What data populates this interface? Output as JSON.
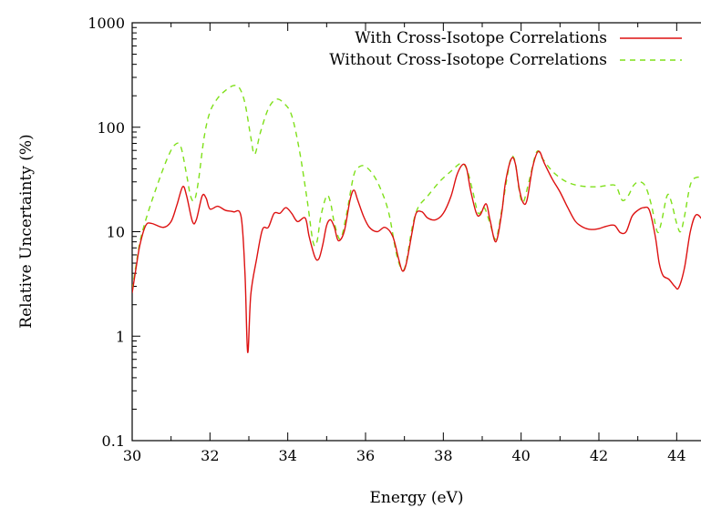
{
  "chart_data": {
    "type": "line",
    "xlabel": "Energy (eV)",
    "ylabel": "Relative Uncertainty (%)",
    "xlim": [
      30,
      45
    ],
    "ylim": [
      0.1,
      1000
    ],
    "yscale": "log",
    "grid": false,
    "legend": "top-right",
    "x_ticks": [
      30,
      32,
      34,
      36,
      38,
      40,
      42,
      44
    ],
    "x_tick_labels": [
      "30",
      "32",
      "34",
      "36",
      "38",
      "40",
      "42",
      "44"
    ],
    "y_ticks": [
      0.1,
      1,
      10,
      100,
      1000
    ],
    "y_tick_labels": [
      "0.1",
      "1",
      "10",
      "100",
      "1000"
    ],
    "series": [
      {
        "name": "With Cross-Isotope Correlations",
        "color": "#dd1111",
        "dash": "solid",
        "points": [
          [
            30.0,
            2.6
          ],
          [
            30.1,
            4.5
          ],
          [
            30.2,
            7.5
          ],
          [
            30.35,
            11.5
          ],
          [
            30.5,
            12.0
          ],
          [
            30.8,
            11.0
          ],
          [
            31.0,
            12.5
          ],
          [
            31.15,
            18
          ],
          [
            31.3,
            27
          ],
          [
            31.4,
            22
          ],
          [
            31.55,
            12.5
          ],
          [
            31.65,
            13
          ],
          [
            31.8,
            22
          ],
          [
            31.9,
            21
          ],
          [
            32.0,
            16.5
          ],
          [
            32.2,
            17.5
          ],
          [
            32.4,
            16
          ],
          [
            32.6,
            15.5
          ],
          [
            32.8,
            14
          ],
          [
            32.9,
            4
          ],
          [
            32.97,
            0.7
          ],
          [
            33.05,
            2.5
          ],
          [
            33.2,
            5.5
          ],
          [
            33.35,
            10.5
          ],
          [
            33.5,
            11
          ],
          [
            33.65,
            15
          ],
          [
            33.8,
            15
          ],
          [
            33.95,
            17
          ],
          [
            34.1,
            15
          ],
          [
            34.25,
            12.5
          ],
          [
            34.45,
            13.5
          ],
          [
            34.55,
            9
          ],
          [
            34.7,
            5.7
          ],
          [
            34.8,
            5.5
          ],
          [
            34.9,
            7.5
          ],
          [
            35.0,
            11.5
          ],
          [
            35.1,
            13
          ],
          [
            35.2,
            11
          ],
          [
            35.3,
            8.2
          ],
          [
            35.45,
            10
          ],
          [
            35.6,
            20
          ],
          [
            35.7,
            25
          ],
          [
            35.8,
            20
          ],
          [
            35.95,
            14
          ],
          [
            36.1,
            11
          ],
          [
            36.3,
            10
          ],
          [
            36.5,
            11
          ],
          [
            36.7,
            9
          ],
          [
            36.85,
            5.5
          ],
          [
            36.95,
            4.2
          ],
          [
            37.05,
            5
          ],
          [
            37.2,
            10
          ],
          [
            37.3,
            15
          ],
          [
            37.45,
            15.5
          ],
          [
            37.6,
            13.5
          ],
          [
            37.8,
            13
          ],
          [
            38.0,
            15
          ],
          [
            38.2,
            22
          ],
          [
            38.35,
            35
          ],
          [
            38.5,
            44
          ],
          [
            38.6,
            40
          ],
          [
            38.7,
            25
          ],
          [
            38.85,
            15
          ],
          [
            38.95,
            14.5
          ],
          [
            39.1,
            18.5
          ],
          [
            39.2,
            13
          ],
          [
            39.35,
            8
          ],
          [
            39.5,
            15
          ],
          [
            39.6,
            30
          ],
          [
            39.75,
            50
          ],
          [
            39.85,
            45
          ],
          [
            39.95,
            26
          ],
          [
            40.05,
            19
          ],
          [
            40.15,
            20
          ],
          [
            40.3,
            42
          ],
          [
            40.45,
            59
          ],
          [
            40.6,
            45
          ],
          [
            40.8,
            32
          ],
          [
            41.0,
            24
          ],
          [
            41.2,
            17
          ],
          [
            41.4,
            12.5
          ],
          [
            41.6,
            11
          ],
          [
            41.8,
            10.5
          ],
          [
            42.0,
            10.7
          ],
          [
            42.2,
            11.3
          ],
          [
            42.4,
            11.5
          ],
          [
            42.55,
            9.8
          ],
          [
            42.7,
            10
          ],
          [
            42.85,
            14
          ],
          [
            43.0,
            16
          ],
          [
            43.15,
            17
          ],
          [
            43.3,
            16
          ],
          [
            43.45,
            9
          ],
          [
            43.55,
            5
          ],
          [
            43.65,
            3.8
          ],
          [
            43.8,
            3.5
          ],
          [
            43.95,
            3.0
          ],
          [
            44.05,
            2.9
          ],
          [
            44.2,
            4.5
          ],
          [
            44.35,
            10
          ],
          [
            44.5,
            14.5
          ],
          [
            44.7,
            12.5
          ],
          [
            44.85,
            11
          ]
        ]
      },
      {
        "name": "Without Cross-Isotope Correlations",
        "color": "#7fe01a",
        "dash": "6,5",
        "points": [
          [
            30.0,
            2.8
          ],
          [
            30.1,
            4.8
          ],
          [
            30.2,
            8
          ],
          [
            30.35,
            13
          ],
          [
            30.6,
            25
          ],
          [
            30.9,
            50
          ],
          [
            31.1,
            68
          ],
          [
            31.25,
            65
          ],
          [
            31.4,
            35
          ],
          [
            31.5,
            22
          ],
          [
            31.6,
            20
          ],
          [
            31.7,
            30
          ],
          [
            31.85,
            80
          ],
          [
            32.0,
            140
          ],
          [
            32.2,
            190
          ],
          [
            32.4,
            225
          ],
          [
            32.6,
            250
          ],
          [
            32.75,
            240
          ],
          [
            32.9,
            170
          ],
          [
            33.05,
            80
          ],
          [
            33.15,
            55
          ],
          [
            33.3,
            90
          ],
          [
            33.5,
            150
          ],
          [
            33.7,
            185
          ],
          [
            33.9,
            170
          ],
          [
            34.1,
            130
          ],
          [
            34.3,
            60
          ],
          [
            34.5,
            20
          ],
          [
            34.65,
            8
          ],
          [
            34.75,
            8
          ],
          [
            34.85,
            14
          ],
          [
            35.0,
            22
          ],
          [
            35.1,
            19
          ],
          [
            35.2,
            12
          ],
          [
            35.35,
            8.5
          ],
          [
            35.5,
            14
          ],
          [
            35.7,
            35
          ],
          [
            35.85,
            42
          ],
          [
            36.0,
            42
          ],
          [
            36.2,
            35
          ],
          [
            36.4,
            25
          ],
          [
            36.6,
            15
          ],
          [
            36.8,
            6
          ],
          [
            36.95,
            4.3
          ],
          [
            37.05,
            5.2
          ],
          [
            37.2,
            11
          ],
          [
            37.35,
            17
          ],
          [
            37.6,
            22
          ],
          [
            37.9,
            30
          ],
          [
            38.2,
            38
          ],
          [
            38.45,
            45
          ],
          [
            38.6,
            40
          ],
          [
            38.75,
            25
          ],
          [
            38.9,
            15
          ],
          [
            39.05,
            17
          ],
          [
            39.2,
            12
          ],
          [
            39.35,
            8.5
          ],
          [
            39.5,
            16
          ],
          [
            39.65,
            35
          ],
          [
            39.75,
            52
          ],
          [
            39.85,
            46
          ],
          [
            39.95,
            25
          ],
          [
            40.05,
            19
          ],
          [
            40.2,
            30
          ],
          [
            40.4,
            58
          ],
          [
            40.55,
            50
          ],
          [
            40.8,
            38
          ],
          [
            41.1,
            31
          ],
          [
            41.4,
            28
          ],
          [
            41.7,
            27
          ],
          [
            42.0,
            27
          ],
          [
            42.3,
            28
          ],
          [
            42.45,
            27
          ],
          [
            42.6,
            20
          ],
          [
            42.75,
            22
          ],
          [
            42.9,
            28
          ],
          [
            43.05,
            30
          ],
          [
            43.2,
            27
          ],
          [
            43.35,
            18
          ],
          [
            43.5,
            10
          ],
          [
            43.6,
            12
          ],
          [
            43.75,
            22
          ],
          [
            43.85,
            20
          ],
          [
            44.0,
            12
          ],
          [
            44.1,
            10
          ],
          [
            44.2,
            14
          ],
          [
            44.35,
            28
          ],
          [
            44.5,
            33
          ],
          [
            44.7,
            32
          ],
          [
            44.85,
            28
          ]
        ]
      }
    ]
  }
}
